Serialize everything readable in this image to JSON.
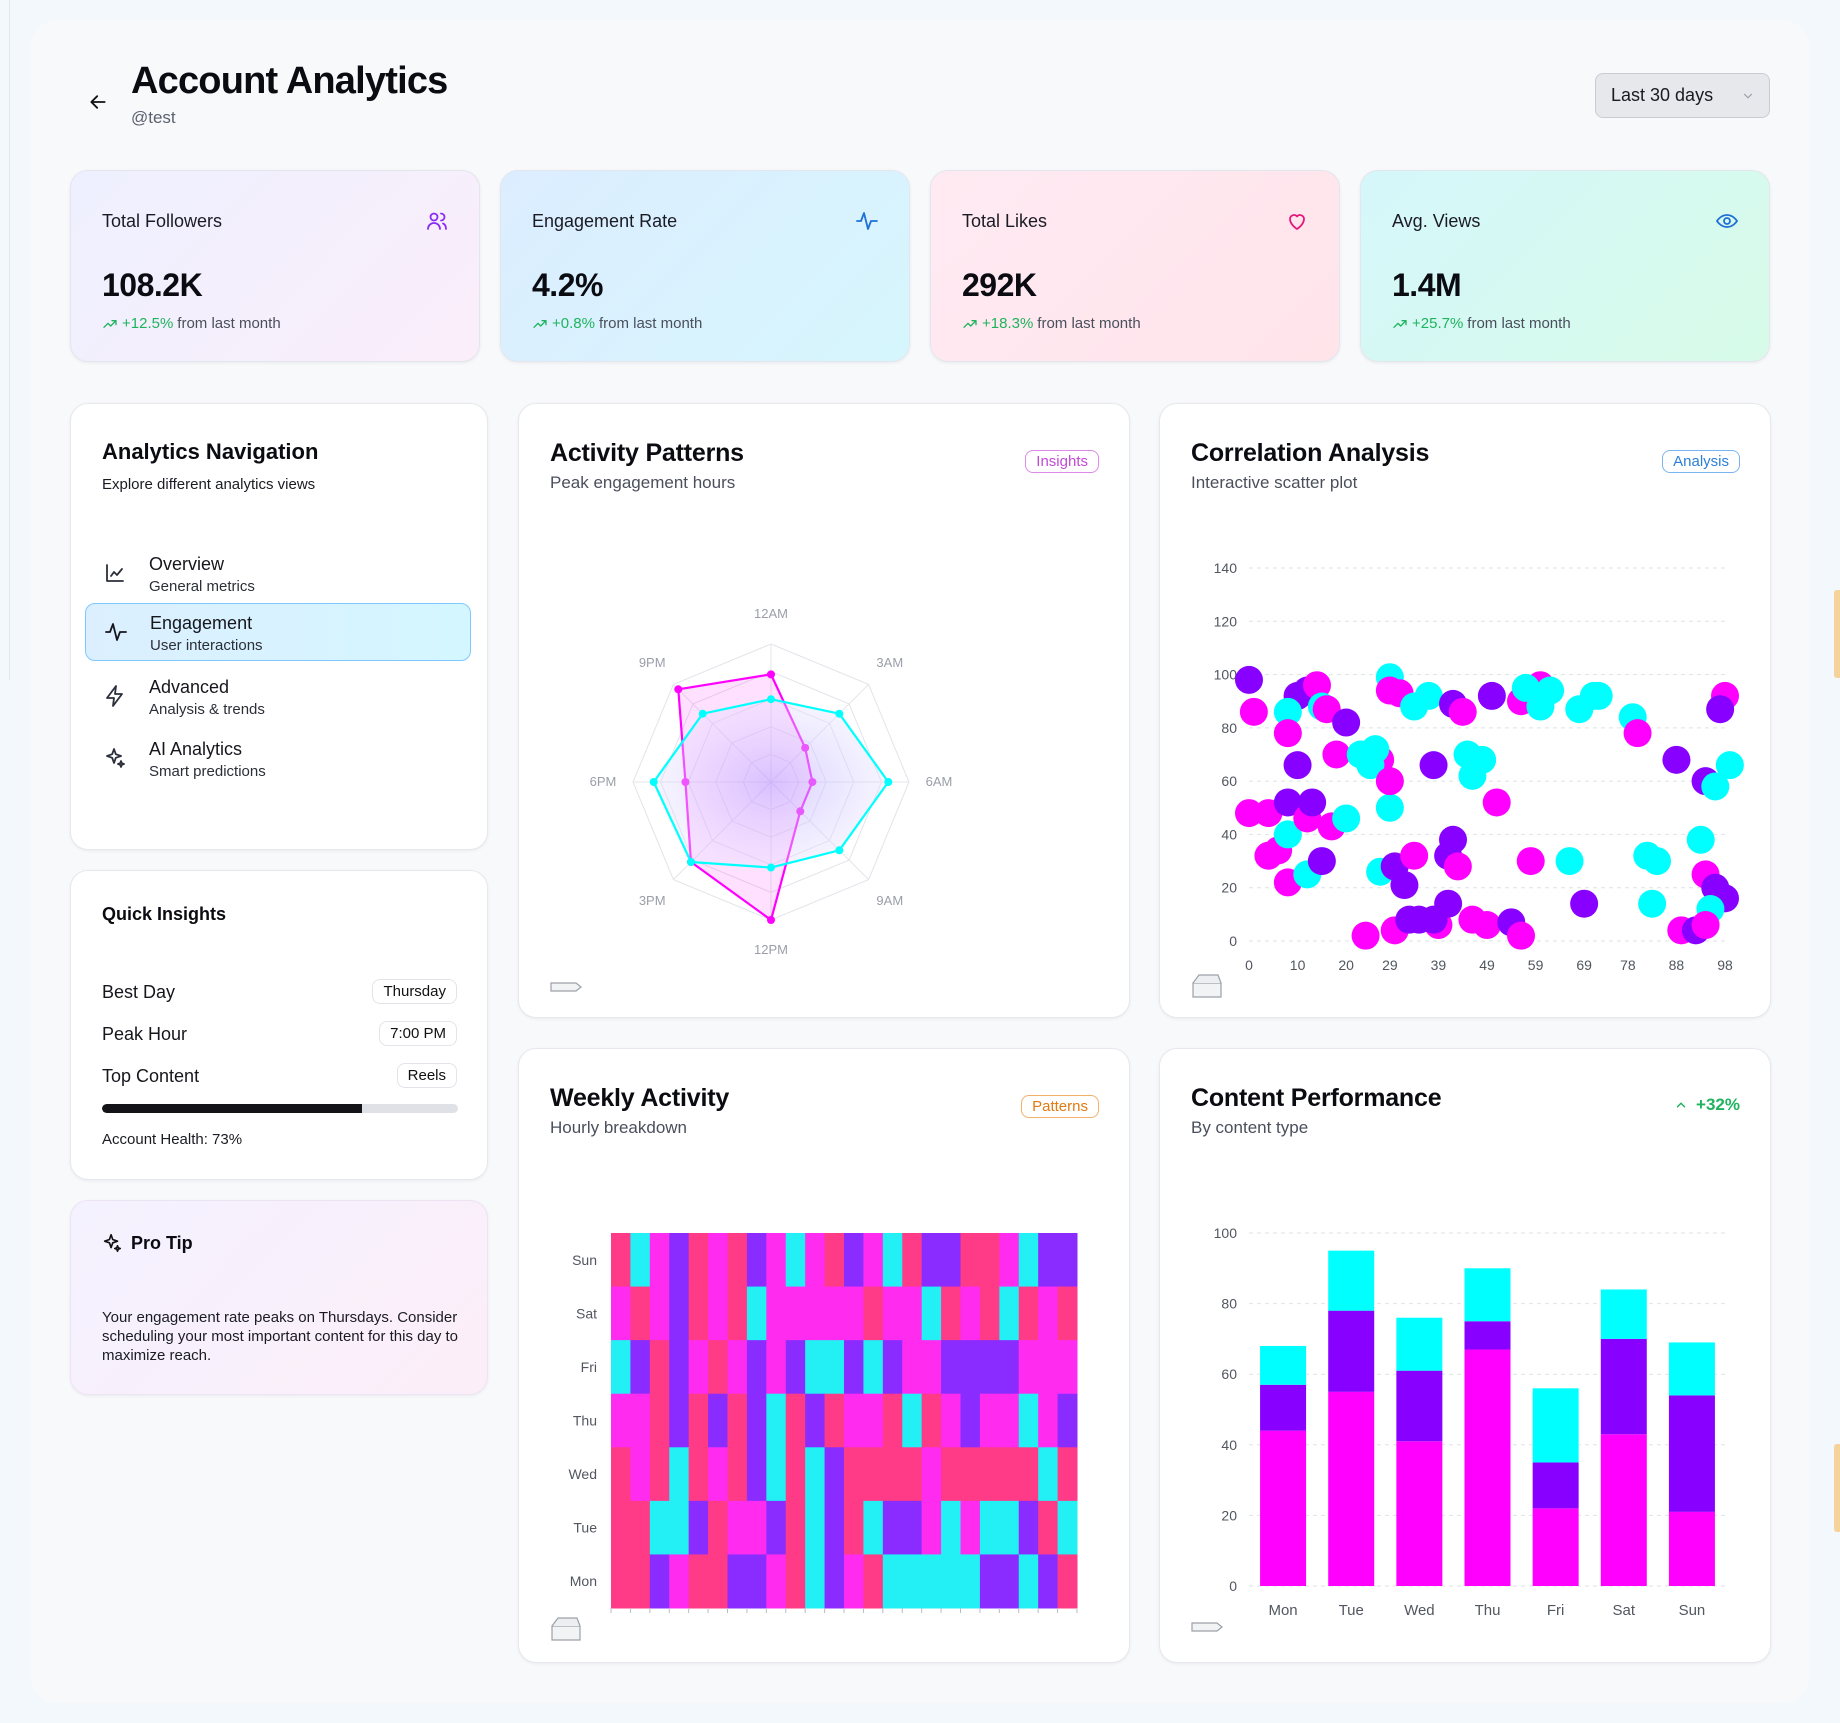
{
  "header": {
    "title": "Account Analytics",
    "handle": "@test",
    "back_icon": "arrow-left-icon",
    "range_select": "Last 30 days"
  },
  "colors": {
    "magenta": "#ff00ff",
    "violet": "#8800ff",
    "cyan": "#00ffff",
    "positive": "#1fb35e"
  },
  "stats": [
    {
      "label": "Total Followers",
      "value": "108.2K",
      "change": "+12.5%",
      "suffix": "from last month",
      "icon": "users-icon"
    },
    {
      "label": "Engagement Rate",
      "value": "4.2%",
      "change": "+0.8%",
      "suffix": "from last month",
      "icon": "activity-icon"
    },
    {
      "label": "Total Likes",
      "value": "292K",
      "change": "+18.3%",
      "suffix": "from last month",
      "icon": "heart-icon"
    },
    {
      "label": "Avg. Views",
      "value": "1.4M",
      "change": "+25.7%",
      "suffix": "from last month",
      "icon": "eye-icon"
    }
  ],
  "nav": {
    "title": "Analytics Navigation",
    "subtitle": "Explore different analytics views",
    "items": [
      {
        "label": "Overview",
        "sub": "General metrics",
        "icon": "line-chart-icon",
        "active": false
      },
      {
        "label": "Engagement",
        "sub": "User interactions",
        "icon": "activity-icon",
        "active": true
      },
      {
        "label": "Advanced",
        "sub": "Analysis & trends",
        "icon": "zap-icon",
        "active": false
      },
      {
        "label": "AI Analytics",
        "sub": "Smart predictions",
        "icon": "sparkles-icon",
        "active": false
      }
    ]
  },
  "insights": {
    "title": "Quick Insights",
    "rows": [
      {
        "label": "Best Day",
        "value": "Thursday"
      },
      {
        "label": "Peak Hour",
        "value": "7:00 PM"
      },
      {
        "label": "Top Content",
        "value": "Reels"
      }
    ],
    "health_label": "Account Health: 73%",
    "health_value": 73
  },
  "tip": {
    "title": "Pro Tip",
    "text": "Your engagement rate peaks on Thursdays. Consider scheduling your most important content for this day to maximize reach."
  },
  "activity": {
    "title": "Activity Patterns",
    "subtitle": "Peak engagement hours",
    "badge": "Insights"
  },
  "correlation": {
    "title": "Correlation Analysis",
    "subtitle": "Interactive scatter plot",
    "badge": "Analysis"
  },
  "weekly": {
    "title": "Weekly Activity",
    "subtitle": "Hourly breakdown",
    "badge": "Patterns"
  },
  "content": {
    "title": "Content Performance",
    "subtitle": "By content type",
    "trend": "+32%"
  },
  "chart_data": [
    {
      "id": "radar",
      "type": "radar",
      "title": "Activity Patterns",
      "axes": [
        "12AM",
        "3AM",
        "6AM",
        "9AM",
        "12PM",
        "3PM",
        "6PM",
        "9PM"
      ],
      "range": [
        0,
        100
      ],
      "series": [
        {
          "name": "magenta",
          "color": "#ff00ff",
          "values": [
            78,
            35,
            30,
            30,
            100,
            82,
            62,
            95
          ]
        },
        {
          "name": "cyan",
          "color": "#00ffff",
          "values": [
            60,
            70,
            85,
            70,
            62,
            82,
            85,
            70
          ]
        }
      ]
    },
    {
      "id": "scatter",
      "type": "scatter",
      "title": "Correlation Analysis",
      "xticks": [
        0,
        10,
        20,
        29,
        39,
        49,
        59,
        69,
        78,
        88,
        98
      ],
      "xlim": [
        0,
        98
      ],
      "ylim": [
        0,
        140
      ],
      "yticks": [
        0,
        20,
        40,
        60,
        80,
        100,
        120,
        140
      ],
      "points": [
        [
          0,
          98,
          "v"
        ],
        [
          1,
          86,
          "m"
        ],
        [
          10,
          92,
          "v"
        ],
        [
          12,
          94,
          "v"
        ],
        [
          14,
          96,
          "m"
        ],
        [
          15,
          88,
          "c"
        ],
        [
          16,
          87,
          "m"
        ],
        [
          8,
          86,
          "c"
        ],
        [
          8,
          78,
          "m"
        ],
        [
          10,
          66,
          "v"
        ],
        [
          18,
          70,
          "m"
        ],
        [
          20,
          82,
          "v"
        ],
        [
          23,
          70,
          "c"
        ],
        [
          27,
          68,
          "m"
        ],
        [
          26,
          72,
          "c"
        ],
        [
          29,
          99,
          "c"
        ],
        [
          29,
          94,
          "m"
        ],
        [
          31,
          93,
          "m"
        ],
        [
          34,
          88,
          "c"
        ],
        [
          37,
          92,
          "c"
        ],
        [
          42,
          89,
          "v"
        ],
        [
          44,
          86,
          "m"
        ],
        [
          45,
          70,
          "c"
        ],
        [
          46,
          62,
          "c"
        ],
        [
          48,
          68,
          "c"
        ],
        [
          50,
          92,
          "v"
        ],
        [
          56,
          90,
          "m"
        ],
        [
          60,
          96,
          "m"
        ],
        [
          60,
          88,
          "c"
        ],
        [
          62,
          94,
          "c"
        ],
        [
          57,
          95,
          "c"
        ],
        [
          68,
          87,
          "c"
        ],
        [
          71,
          92,
          "c"
        ],
        [
          72,
          92,
          "c"
        ],
        [
          79,
          84,
          "c"
        ],
        [
          80,
          78,
          "m"
        ],
        [
          88,
          68,
          "v"
        ],
        [
          94,
          60,
          "v"
        ],
        [
          96,
          58,
          "c"
        ],
        [
          98,
          92,
          "m"
        ],
        [
          97,
          87,
          "v"
        ],
        [
          99,
          66,
          "c"
        ],
        [
          0,
          48,
          "m"
        ],
        [
          4,
          48,
          "m"
        ],
        [
          4,
          32,
          "m"
        ],
        [
          6,
          34,
          "m"
        ],
        [
          8,
          22,
          "m"
        ],
        [
          8,
          52,
          "v"
        ],
        [
          8,
          40,
          "c"
        ],
        [
          12,
          25,
          "c"
        ],
        [
          12,
          46,
          "m"
        ],
        [
          13,
          52,
          "v"
        ],
        [
          15,
          30,
          "v"
        ],
        [
          17,
          43,
          "m"
        ],
        [
          20,
          46,
          "c"
        ],
        [
          25,
          66,
          "c"
        ],
        [
          29,
          50,
          "c"
        ],
        [
          29,
          60,
          "m"
        ],
        [
          27,
          26,
          "c"
        ],
        [
          30,
          28,
          "v"
        ],
        [
          32,
          21,
          "v"
        ],
        [
          34,
          32,
          "m"
        ],
        [
          38,
          66,
          "v"
        ],
        [
          41,
          32,
          "v"
        ],
        [
          42,
          38,
          "v"
        ],
        [
          43,
          28,
          "m"
        ],
        [
          51,
          52,
          "m"
        ],
        [
          58,
          30,
          "m"
        ],
        [
          66,
          30,
          "c"
        ],
        [
          69,
          14,
          "v"
        ],
        [
          82,
          32,
          "c"
        ],
        [
          84,
          30,
          "c"
        ],
        [
          83,
          14,
          "c"
        ],
        [
          93,
          38,
          "c"
        ],
        [
          94,
          25,
          "m"
        ],
        [
          96,
          20,
          "v"
        ],
        [
          98,
          16,
          "v"
        ],
        [
          95,
          12,
          "c"
        ],
        [
          39,
          6,
          "m"
        ],
        [
          38,
          8,
          "v"
        ],
        [
          41,
          14,
          "v"
        ],
        [
          46,
          8,
          "m"
        ],
        [
          49,
          6,
          "m"
        ],
        [
          54,
          7,
          "v"
        ],
        [
          56,
          2,
          "m"
        ],
        [
          24,
          2,
          "m"
        ],
        [
          30,
          4,
          "m"
        ],
        [
          33,
          8,
          "v"
        ],
        [
          35,
          8,
          "v"
        ],
        [
          89,
          4,
          "m"
        ],
        [
          92,
          4,
          "v"
        ],
        [
          94,
          6,
          "m"
        ]
      ]
    },
    {
      "id": "heatmap",
      "type": "heatmap",
      "title": "Weekly Activity",
      "rows": [
        "Sun",
        "Sat",
        "Fri",
        "Thu",
        "Wed",
        "Tue",
        "Mon"
      ],
      "columns": 24,
      "color_scale": [
        "#00ffff",
        "#8800ff",
        "#ff00ff",
        "#ff2277"
      ],
      "values": [
        [
          3,
          0,
          2,
          1,
          3,
          2,
          3,
          1,
          2,
          0,
          2,
          3,
          1,
          2,
          0,
          3,
          1,
          1,
          3,
          3,
          2,
          0,
          1,
          1
        ],
        [
          2,
          3,
          2,
          1,
          3,
          2,
          3,
          0,
          2,
          2,
          2,
          2,
          2,
          3,
          2,
          2,
          0,
          3,
          2,
          3,
          0,
          3,
          2,
          3
        ],
        [
          0,
          1,
          3,
          1,
          2,
          3,
          2,
          1,
          2,
          1,
          0,
          0,
          1,
          0,
          1,
          2,
          2,
          1,
          1,
          1,
          1,
          2,
          2,
          2
        ],
        [
          2,
          2,
          3,
          1,
          3,
          1,
          3,
          1,
          0,
          3,
          1,
          3,
          2,
          2,
          3,
          0,
          3,
          2,
          1,
          2,
          2,
          0,
          2,
          1
        ],
        [
          3,
          2,
          3,
          0,
          3,
          2,
          3,
          1,
          0,
          3,
          0,
          1,
          3,
          3,
          3,
          3,
          2,
          3,
          3,
          3,
          3,
          3,
          0,
          3
        ],
        [
          3,
          3,
          0,
          0,
          1,
          3,
          2,
          2,
          1,
          3,
          0,
          1,
          3,
          0,
          1,
          1,
          2,
          0,
          2,
          0,
          0,
          1,
          3,
          0
        ],
        [
          3,
          3,
          1,
          2,
          3,
          3,
          1,
          1,
          2,
          3,
          0,
          1,
          2,
          3,
          0,
          0,
          0,
          0,
          0,
          1,
          1,
          0,
          1,
          3
        ]
      ]
    },
    {
      "id": "bars",
      "type": "bar",
      "stacked": true,
      "title": "Content Performance",
      "categories": [
        "Mon",
        "Tue",
        "Wed",
        "Thu",
        "Fri",
        "Sat",
        "Sun"
      ],
      "ylim": [
        0,
        100
      ],
      "yticks": [
        0,
        20,
        40,
        60,
        80,
        100
      ],
      "series": [
        {
          "name": "magenta",
          "color": "#ff00ff",
          "values": [
            44,
            55,
            41,
            67,
            22,
            43,
            21
          ]
        },
        {
          "name": "violet",
          "color": "#8800ff",
          "values": [
            13,
            23,
            20,
            8,
            13,
            27,
            33
          ]
        },
        {
          "name": "cyan",
          "color": "#00ffff",
          "values": [
            11,
            17,
            15,
            15,
            21,
            14,
            15
          ]
        }
      ]
    }
  ]
}
